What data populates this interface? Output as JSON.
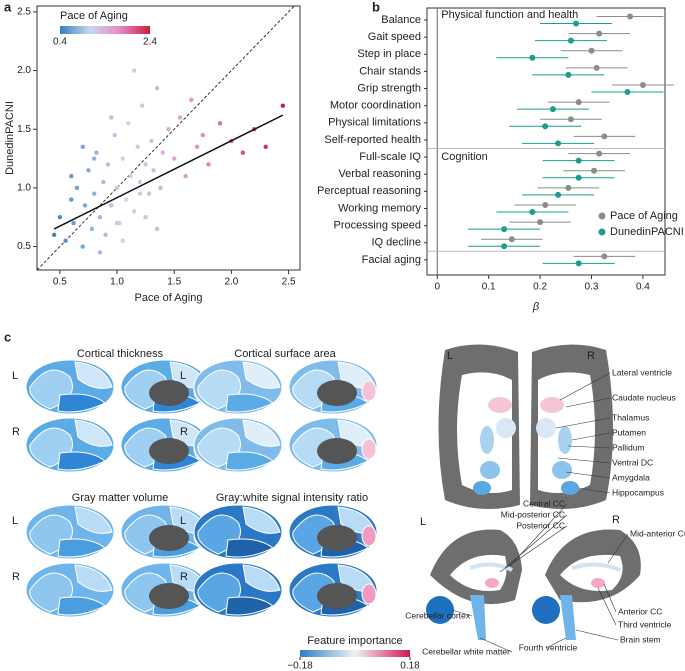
{
  "panel_labels": [
    "a",
    "b",
    "c"
  ],
  "chart_data": [
    {
      "type": "scatter",
      "xlabel": "Pace of Aging",
      "ylabel": "DunedinPACNI",
      "x": [
        0.45,
        0.5,
        0.55,
        0.6,
        0.62,
        0.65,
        0.7,
        0.72,
        0.75,
        0.78,
        0.8,
        0.82,
        0.85,
        0.88,
        0.9,
        0.92,
        0.95,
        0.98,
        1.0,
        1.02,
        1.05,
        1.08,
        1.1,
        1.12,
        1.15,
        1.18,
        1.2,
        1.22,
        1.25,
        1.28,
        1.3,
        1.32,
        1.35,
        1.38,
        1.4,
        1.45,
        1.5,
        1.55,
        1.6,
        1.65,
        1.7,
        1.75,
        1.8,
        1.9,
        2.0,
        2.1,
        2.2,
        2.3,
        2.45,
        0.7,
        0.85,
        0.95,
        1.05,
        1.15,
        1.25,
        1.35,
        0.6,
        0.8,
        1.0,
        1.2
      ],
      "y": [
        0.6,
        0.75,
        0.55,
        0.9,
        0.7,
        1.0,
        0.5,
        0.85,
        1.15,
        0.65,
        0.95,
        1.3,
        0.75,
        1.05,
        0.6,
        1.2,
        0.85,
        1.45,
        1.0,
        0.7,
        1.25,
        0.9,
        1.55,
        1.1,
        0.8,
        1.35,
        1.05,
        1.7,
        1.2,
        0.95,
        1.4,
        1.15,
        1.85,
        1.0,
        1.3,
        1.5,
        1.25,
        1.6,
        1.1,
        1.75,
        1.35,
        1.45,
        1.2,
        1.55,
        1.4,
        1.3,
        1.5,
        1.35,
        1.7,
        1.35,
        0.45,
        1.6,
        0.55,
        2.0,
        0.75,
        0.65,
        1.1,
        1.25,
        0.7,
        0.95
      ],
      "fit": {
        "x": [
          0.45,
          2.45
        ],
        "y": [
          0.65,
          1.62
        ]
      },
      "colorbar": {
        "title": "Pace of Aging",
        "clim": [
          0.4,
          2.4
        ],
        "colors": [
          "#3a7ebf",
          "#c9d7ee",
          "#e78ac3",
          "#c7203a"
        ]
      },
      "xlim": [
        0.3,
        2.6
      ],
      "ylim": [
        0.3,
        2.55
      ],
      "xticks": [
        0.5,
        {
          "value": 1,
          "label": "1.0"
        },
        1.5,
        {
          "value": 2,
          "label": "2.0"
        },
        2.5
      ],
      "yticks": [
        0.5,
        {
          "value": 1,
          "label": "1.0"
        },
        1.5,
        {
          "value": 2,
          "label": "2.0"
        },
        2.5
      ]
    },
    {
      "type": "dot",
      "xlabel": "β",
      "categories": [
        "Balance",
        "Gait speed",
        "Step in place",
        "Chair stands",
        "Grip strength",
        "Motor coordination",
        "Physical limitations",
        "Self-reported health",
        "Full-scale IQ",
        "Verbal reasoning",
        "Perceptual reasoning",
        "Working memory",
        "Processing speed",
        "IQ decline",
        "Facial aging"
      ],
      "groups": [
        "Physical function and health",
        "Cognition"
      ],
      "series": [
        {
          "name": "Pace of Aging",
          "color": "#8c8c8c",
          "values": [
            0.375,
            0.315,
            0.3,
            0.31,
            0.4,
            0.275,
            0.26,
            0.325,
            0.315,
            0.305,
            0.255,
            0.21,
            0.2,
            0.145,
            0.325
          ],
          "errors": [
            0.065,
            0.06,
            0.06,
            0.06,
            0.06,
            0.06,
            0.06,
            0.06,
            0.06,
            0.06,
            0.06,
            0.06,
            0.06,
            0.06,
            0.06
          ]
        },
        {
          "name": "DunedinPACNI",
          "color": "#1a9e8f",
          "values": [
            0.27,
            0.26,
            0.185,
            0.255,
            0.37,
            0.225,
            0.21,
            0.235,
            0.275,
            0.275,
            0.235,
            0.185,
            0.13,
            0.13,
            0.275
          ],
          "errors": [
            0.07,
            0.07,
            0.07,
            0.07,
            0.07,
            0.07,
            0.07,
            0.07,
            0.07,
            0.07,
            0.07,
            0.07,
            0.07,
            0.07,
            0.07
          ]
        }
      ],
      "xlim": [
        -0.02,
        0.443
      ],
      "xticks": [
        0,
        0.1,
        0.2,
        0.3,
        0.4
      ]
    }
  ],
  "brain": {
    "titles": [
      "Cortical thickness",
      "Cortical surface area",
      "Gray matter volume",
      "Gray:white signal intensity ratio"
    ],
    "hemispheres": [
      "L",
      "R"
    ],
    "structures": [
      "Lateral ventricle",
      "Caudate nucleus",
      "Thalamus",
      "Putamen",
      "Pallidum",
      "Ventral DC",
      "Amygdala",
      "Hippocampus",
      "Central CC",
      "Mid-posterior CC",
      "Posterior CC",
      "Mid-anterior CC",
      "Anterior CC",
      "Third ventricle",
      "Cerebellar cortex",
      "Cerebellar white matter",
      "Fourth ventricle",
      "Brain stem"
    ],
    "colorbar": {
      "title": "Feature importance",
      "ticks": [
        {
          "value": -0.18,
          "label": "−0.18"
        },
        0.18
      ]
    }
  }
}
